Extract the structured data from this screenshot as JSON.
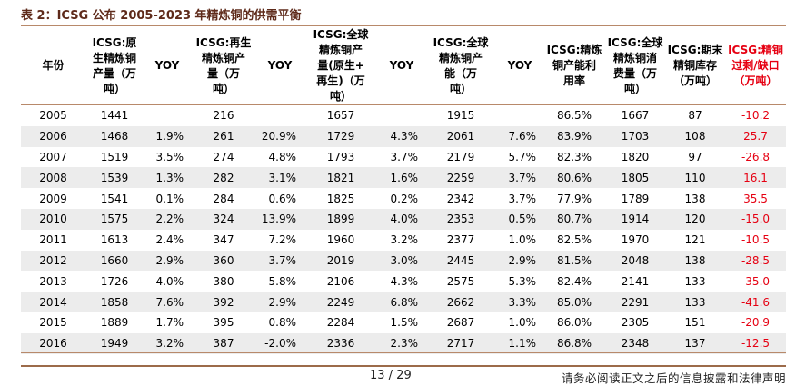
{
  "caption": "表 2：ICSG 公布 2005-2023 年精炼铜的供需平衡",
  "headers": [
    "年份",
    "ICSG:原\n生精炼铜\n产量（万\n吨）",
    "YOY",
    "ICSG:再生\n精炼铜产\n量（万\n吨）",
    "YOY",
    "ICSG:全球\n精炼铜产\n量(原生+\n再生)（万\n吨）",
    "YOY",
    "ICSG:全球\n精炼铜产\n能（万\n吨）",
    "YOY",
    "ICSG:精炼\n铜产能利\n用率",
    "ICSG:全球\n精炼铜消\n费量（万\n吨）",
    "ICSG:期末\n精铜库存\n（万吨）",
    "ICSG:精铜\n过剩/缺口\n（万吨）"
  ],
  "rows": [
    [
      "2005",
      "1441",
      "",
      "216",
      "",
      "1657",
      "",
      "1915",
      "",
      "86.5%",
      "1667",
      "87",
      "-10.2"
    ],
    [
      "2006",
      "1468",
      "1.9%",
      "261",
      "20.9%",
      "1729",
      "4.3%",
      "2061",
      "7.6%",
      "83.9%",
      "1703",
      "108",
      "25.7"
    ],
    [
      "2007",
      "1519",
      "3.5%",
      "274",
      "4.8%",
      "1793",
      "3.7%",
      "2179",
      "5.7%",
      "82.3%",
      "1820",
      "97",
      "-26.8"
    ],
    [
      "2008",
      "1539",
      "1.3%",
      "282",
      "3.1%",
      "1821",
      "1.6%",
      "2259",
      "3.7%",
      "80.6%",
      "1805",
      "110",
      "16.1"
    ],
    [
      "2009",
      "1541",
      "0.1%",
      "284",
      "0.6%",
      "1825",
      "0.2%",
      "2342",
      "3.7%",
      "77.9%",
      "1789",
      "138",
      "35.5"
    ],
    [
      "2010",
      "1575",
      "2.2%",
      "324",
      "13.9%",
      "1899",
      "4.0%",
      "2353",
      "0.5%",
      "80.7%",
      "1914",
      "120",
      "-15.0"
    ],
    [
      "2011",
      "1613",
      "2.4%",
      "347",
      "7.2%",
      "1960",
      "3.2%",
      "2377",
      "1.0%",
      "82.5%",
      "1970",
      "121",
      "-10.5"
    ],
    [
      "2012",
      "1660",
      "2.9%",
      "360",
      "3.7%",
      "2019",
      "3.0%",
      "2445",
      "2.9%",
      "81.5%",
      "2048",
      "138",
      "-28.5"
    ],
    [
      "2013",
      "1726",
      "4.0%",
      "380",
      "5.8%",
      "2106",
      "4.3%",
      "2575",
      "5.3%",
      "82.4%",
      "2141",
      "133",
      "-35.0"
    ],
    [
      "2014",
      "1858",
      "7.6%",
      "392",
      "2.9%",
      "2249",
      "6.8%",
      "2662",
      "3.3%",
      "85.0%",
      "2291",
      "133",
      "-41.6"
    ],
    [
      "2015",
      "1889",
      "1.7%",
      "395",
      "0.8%",
      "2284",
      "1.5%",
      "2687",
      "1.0%",
      "86.0%",
      "2305",
      "151",
      "-20.9"
    ],
    [
      "2016",
      "1949",
      "3.2%",
      "387",
      "-2.0%",
      "2336",
      "2.3%",
      "2717",
      "1.1%",
      "86.8%",
      "2348",
      "137",
      "-12.5"
    ]
  ],
  "footer": {
    "page": "13 / 29",
    "disclaimer": "请务必阅读正文之后的信息披露和法律声明"
  },
  "colors": {
    "accent_red": "#e60012",
    "rule_brown": "#b8896a",
    "row_shade": "#ececec"
  }
}
